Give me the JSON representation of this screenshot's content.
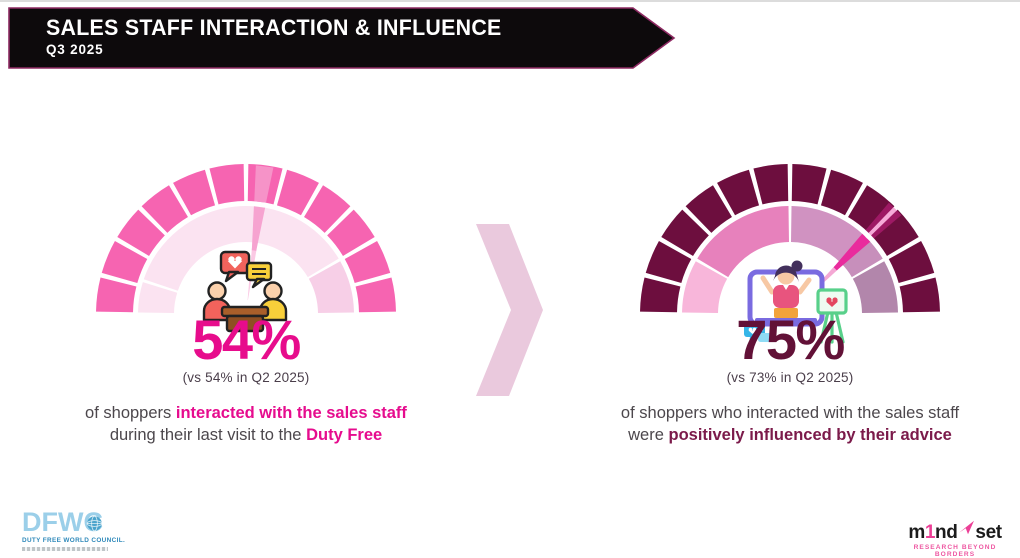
{
  "header": {
    "title": "SALES STAFF INTERACTION & INFLUENCE",
    "subtitle": "Q3 2025"
  },
  "colors": {
    "banner_fill": "#0d0a0c",
    "banner_border": "#8d2a62",
    "left_accent": "#e60c8e",
    "right_accent": "#7b1a4a",
    "chevron": "#eac9dd",
    "body_text": "#4c474c"
  },
  "chart_data": [
    {
      "type": "gauge",
      "name": "sales-staff-interaction",
      "value": 54,
      "max": 100,
      "value_label": "54%",
      "comparison": "(vs 54% in Q2 2025)",
      "caption": "of shoppers interacted with the sales staff during their last visit to the Duty Free"
    },
    {
      "type": "gauge",
      "name": "positive-influence",
      "value": 75,
      "max": 100,
      "value_label": "75%",
      "comparison": "(vs 73% in Q2 2025)",
      "caption": "of shoppers who interacted with the sales staff were positively influenced by their advice"
    }
  ],
  "gauges": [
    {
      "name": "interaction",
      "percent": 54,
      "value_label": "54%",
      "value_color": "#e70c8c",
      "compare_label": "(vs 54% in Q2 2025)",
      "outer_color": "#f664b1",
      "inner_segments": [
        {
          "from": 0,
          "to": 10,
          "color": "#fbe3f1"
        },
        {
          "from": 10,
          "to": 83.3,
          "color": "#fbe3f1"
        },
        {
          "from": 83.3,
          "to": 100,
          "color": "#f7cfe7"
        }
      ],
      "needle": {
        "percent": 54,
        "inner_color": "#fbc9e4",
        "outer_color": "#f6a3d0",
        "overlay_opacity": 0.75
      }
    },
    {
      "name": "influence",
      "percent": 75,
      "value_label": "75%",
      "value_color": "#621137",
      "compare_label": "(vs 73% in Q2 2025)",
      "outer_color": "#6d0e3e",
      "inner_segments": [
        {
          "from": 0,
          "to": 16.7,
          "color": "#f8b6da"
        },
        {
          "from": 16.7,
          "to": 50,
          "color": "#e781bc"
        },
        {
          "from": 50,
          "to": 75,
          "color": "#d092c1"
        },
        {
          "from": 75,
          "to": 83.3,
          "color": "#c78fbb"
        },
        {
          "from": 83.3,
          "to": 100,
          "color": "#b286ab"
        }
      ],
      "needle": {
        "percent": 75,
        "inner_color": "#f4a8d4",
        "outer_color": "#e92b9d",
        "overlay_opacity": 0.4
      }
    }
  ],
  "captions": {
    "interaction": [
      {
        "t": "of shoppers "
      },
      {
        "t": "interacted with the sales staff",
        "c": "pink"
      },
      {
        "t": " during their last visit to the "
      },
      {
        "t": "Duty Free",
        "c": "pink"
      }
    ],
    "influence": [
      {
        "t": "of shoppers who interacted with the sales staff were "
      },
      {
        "t": "positively influenced by their advice",
        "c": "maroon"
      }
    ]
  },
  "footer": {
    "dfwc": {
      "acronym": "DFWC",
      "name": "DUTY FREE WORLD COUNCIL."
    },
    "mindset": {
      "m": "m",
      "one": "1",
      "nd": "nd",
      "set": "set",
      "tagline": "RESEARCH BEYOND BORDERS"
    }
  }
}
